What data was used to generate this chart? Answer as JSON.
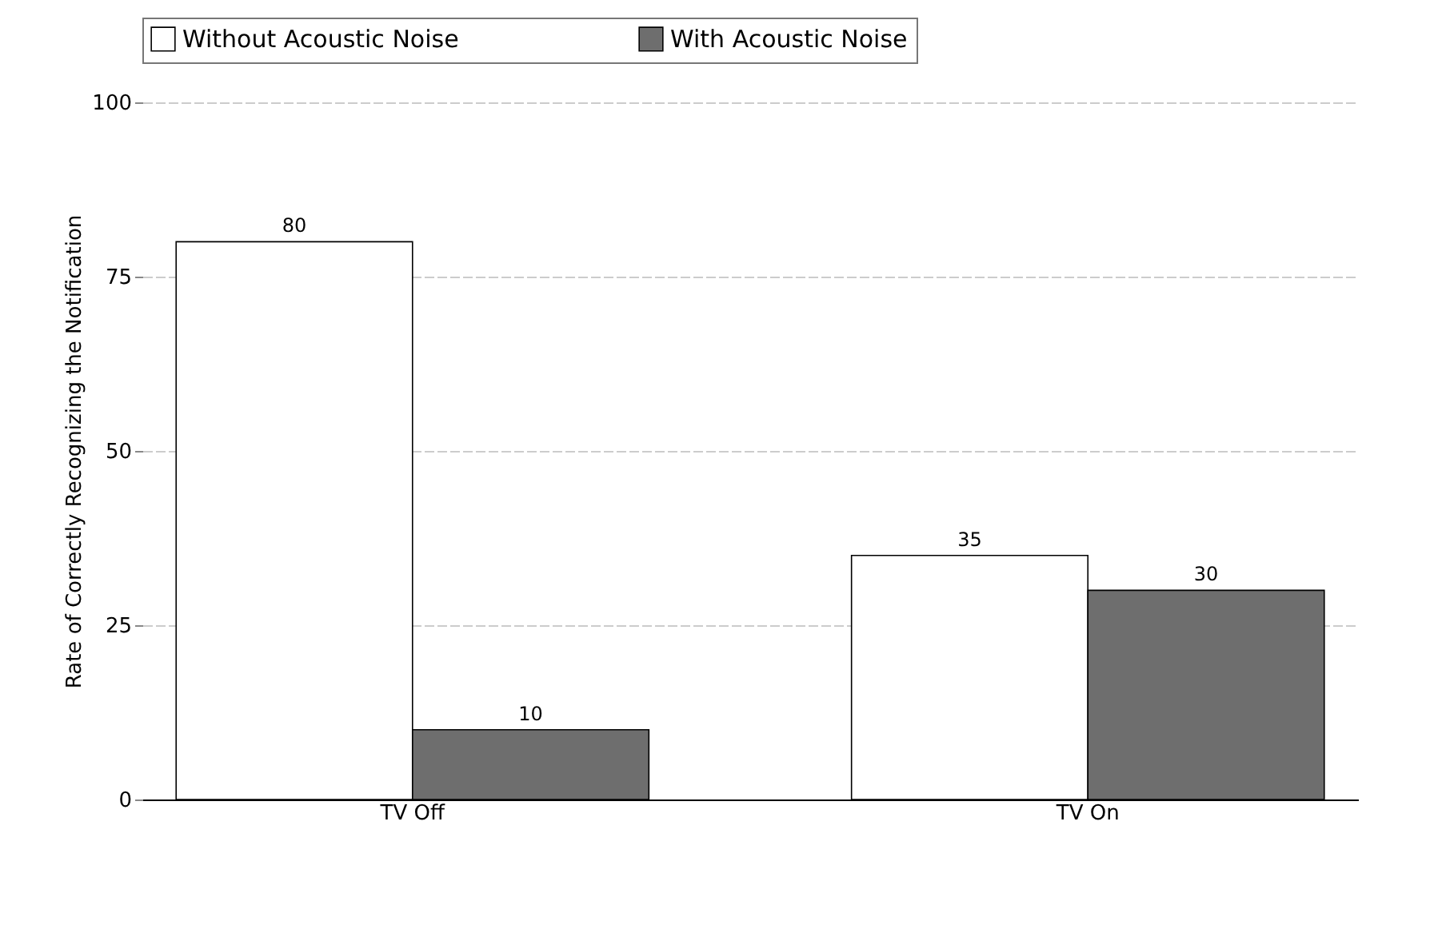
{
  "chart_data": {
    "type": "bar",
    "ylabel": "Rate of Correctly Recognizing the Notification",
    "categories": [
      "TV Off",
      "TV On"
    ],
    "series": [
      {
        "name": "Without Acoustic Noise",
        "color": "#ffffff",
        "values": [
          80,
          35
        ]
      },
      {
        "name": "With Acoustic Noise",
        "color": "#6e6e6e",
        "values": [
          10,
          30
        ]
      }
    ],
    "ylim": [
      0,
      100
    ],
    "yticks": [
      0,
      25,
      50,
      75,
      100
    ],
    "grid": "y",
    "legend": "top",
    "data_labels": true
  }
}
